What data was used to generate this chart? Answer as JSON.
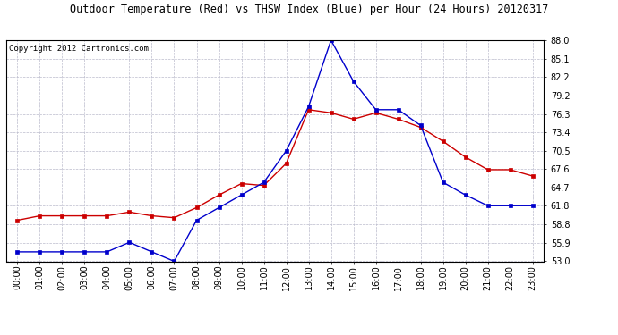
{
  "title": "Outdoor Temperature (Red) vs THSW Index (Blue) per Hour (24 Hours) 20120317",
  "copyright": "Copyright 2012 Cartronics.com",
  "hours": [
    "00:00",
    "01:00",
    "02:00",
    "03:00",
    "04:00",
    "05:00",
    "06:00",
    "07:00",
    "08:00",
    "09:00",
    "10:00",
    "11:00",
    "12:00",
    "13:00",
    "14:00",
    "15:00",
    "16:00",
    "17:00",
    "18:00",
    "19:00",
    "20:00",
    "21:00",
    "22:00",
    "23:00"
  ],
  "red_temp": [
    59.5,
    60.2,
    60.2,
    60.2,
    60.2,
    60.8,
    60.2,
    59.9,
    61.5,
    63.5,
    65.3,
    65.0,
    68.5,
    77.0,
    76.5,
    75.5,
    76.5,
    75.5,
    74.2,
    72.0,
    69.5,
    67.5,
    67.5,
    66.5
  ],
  "blue_thsw": [
    54.5,
    54.5,
    54.5,
    54.5,
    54.5,
    56.0,
    54.5,
    53.0,
    59.5,
    61.5,
    63.5,
    65.5,
    70.5,
    77.5,
    88.0,
    81.5,
    77.0,
    77.0,
    74.5,
    65.5,
    63.5,
    61.8,
    61.8,
    61.8
  ],
  "y_ticks": [
    53.0,
    55.9,
    58.8,
    61.8,
    64.7,
    67.6,
    70.5,
    73.4,
    76.3,
    79.2,
    82.2,
    85.1,
    88.0
  ],
  "ylim": [
    53.0,
    88.0
  ],
  "background_color": "#FFFFFF",
  "plot_bg_color": "#FFFFFF",
  "grid_color": "#BBBBCC",
  "title_color": "#000000",
  "red_color": "#CC0000",
  "blue_color": "#0000CC",
  "title_fontsize": 8.5,
  "copyright_fontsize": 6.5,
  "tick_fontsize": 7.0
}
